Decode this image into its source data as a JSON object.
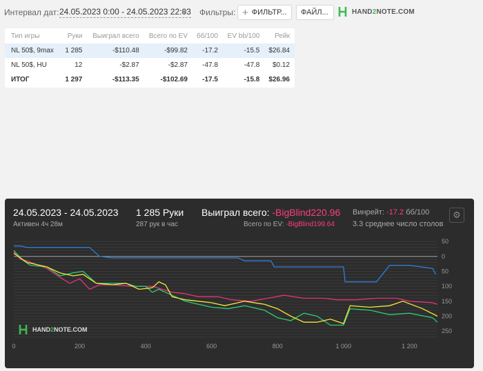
{
  "toolbar": {
    "interval_label": "Интервал дат:",
    "date_range": "24.05.2023 0:00 - 24.05.2023 22:03",
    "filters_label": "Фильтры:",
    "filter_button": "ФИЛЬТР...",
    "file_button": "ФАЙЛ...",
    "logo": {
      "pre": "HAND",
      "two": "2",
      "post": "NOTE.COM"
    }
  },
  "table": {
    "headers": [
      "Тип игры",
      "Руки",
      "Выиграл всего",
      "Всего по EV",
      "бб/100",
      "EV bb/100",
      "Рейк"
    ],
    "rows": [
      [
        "NL 50$, 9max",
        "1 285",
        "-$110.48",
        "-$99.82",
        "-17.2",
        "-15.5",
        "$26.84"
      ],
      [
        "NL 50$, HU",
        "12",
        "-$2.87",
        "-$2.87",
        "-47.8",
        "-47.8",
        "$0.12"
      ],
      [
        "ИТОГ",
        "1 297",
        "-$113.35",
        "-$102.69",
        "-17.5",
        "-15.8",
        "$26.96"
      ]
    ]
  },
  "graph": {
    "date_range": "24.05.2023 - 24.05.2023",
    "active": "Активен 4ч 28м",
    "hands": "1 285 Руки",
    "hands_per_hour": "287 рук в час",
    "won_label": "Выиграл всего:",
    "won_value": "-BigBlind220.96",
    "ev_label": "Всего по EV:",
    "ev_value": "-BigBlind199.64",
    "winrate_label": "Винрейт:",
    "winrate_value": "-17.2",
    "winrate_unit": "бб/100",
    "tables_avg": "3.3 среднее число столов",
    "watermark": {
      "pre": "HAND",
      "two": "2",
      "post": "NOTE.COM"
    }
  },
  "chart_data": {
    "type": "line",
    "x_ticks": [
      "0",
      "200",
      "400",
      "600",
      "800",
      "1 000",
      "1 200"
    ],
    "y_ticks": [
      "50",
      "0",
      "-50",
      "-100",
      "-150",
      "-200",
      "-250"
    ],
    "y_tick_labels": [
      "50",
      "0",
      "50",
      "100",
      "150",
      "200",
      "250"
    ],
    "xlim": [
      0,
      1285
    ],
    "ylim": [
      -275,
      55
    ],
    "colors": {
      "blue": "#2f7fd6",
      "green": "#2ecc71",
      "yellow": "#f2e93b",
      "pink": "#e8327c"
    },
    "series": [
      {
        "color": "blue",
        "points": [
          [
            0,
            35
          ],
          [
            20,
            35
          ],
          [
            40,
            30
          ],
          [
            150,
            30
          ],
          [
            230,
            30
          ],
          [
            240,
            20
          ],
          [
            260,
            0
          ],
          [
            300,
            -5
          ],
          [
            480,
            -5
          ],
          [
            600,
            -5
          ],
          [
            680,
            -5
          ],
          [
            700,
            -15
          ],
          [
            780,
            -15
          ],
          [
            790,
            -35
          ],
          [
            960,
            -35
          ],
          [
            1000,
            -35
          ],
          [
            1005,
            -85
          ],
          [
            1100,
            -85
          ],
          [
            1140,
            -30
          ],
          [
            1200,
            -30
          ],
          [
            1270,
            -40
          ],
          [
            1280,
            -60
          ]
        ]
      },
      {
        "color": "pink",
        "points": [
          [
            0,
            15
          ],
          [
            20,
            -10
          ],
          [
            40,
            -15
          ],
          [
            100,
            -40
          ],
          [
            140,
            -70
          ],
          [
            170,
            -90
          ],
          [
            200,
            -75
          ],
          [
            230,
            -110
          ],
          [
            260,
            -95
          ],
          [
            300,
            -95
          ],
          [
            360,
            -100
          ],
          [
            420,
            -100
          ],
          [
            480,
            -120
          ],
          [
            520,
            -125
          ],
          [
            560,
            -135
          ],
          [
            620,
            -135
          ],
          [
            660,
            -145
          ],
          [
            720,
            -150
          ],
          [
            770,
            -140
          ],
          [
            820,
            -130
          ],
          [
            880,
            -140
          ],
          [
            940,
            -140
          ],
          [
            980,
            -145
          ],
          [
            1040,
            -145
          ],
          [
            1100,
            -140
          ],
          [
            1160,
            -140
          ],
          [
            1200,
            -150
          ],
          [
            1270,
            -155
          ],
          [
            1285,
            -160
          ]
        ]
      },
      {
        "color": "green",
        "points": [
          [
            0,
            20
          ],
          [
            25,
            -10
          ],
          [
            50,
            -30
          ],
          [
            100,
            -35
          ],
          [
            140,
            -65
          ],
          [
            180,
            -55
          ],
          [
            210,
            -50
          ],
          [
            250,
            -90
          ],
          [
            300,
            -90
          ],
          [
            340,
            -90
          ],
          [
            370,
            -100
          ],
          [
            400,
            -100
          ],
          [
            420,
            -120
          ],
          [
            440,
            -110
          ],
          [
            480,
            -130
          ],
          [
            520,
            -150
          ],
          [
            560,
            -160
          ],
          [
            600,
            -170
          ],
          [
            650,
            -175
          ],
          [
            700,
            -165
          ],
          [
            760,
            -180
          ],
          [
            800,
            -205
          ],
          [
            840,
            -215
          ],
          [
            880,
            -190
          ],
          [
            920,
            -200
          ],
          [
            960,
            -230
          ],
          [
            1000,
            -230
          ],
          [
            1020,
            -175
          ],
          [
            1080,
            -180
          ],
          [
            1140,
            -195
          ],
          [
            1200,
            -190
          ],
          [
            1270,
            -205
          ],
          [
            1285,
            -220
          ]
        ]
      },
      {
        "color": "yellow",
        "points": [
          [
            0,
            10
          ],
          [
            20,
            -5
          ],
          [
            40,
            -20
          ],
          [
            100,
            -35
          ],
          [
            140,
            -55
          ],
          [
            180,
            -65
          ],
          [
            210,
            -60
          ],
          [
            250,
            -90
          ],
          [
            300,
            -95
          ],
          [
            340,
            -90
          ],
          [
            380,
            -110
          ],
          [
            420,
            -105
          ],
          [
            440,
            -85
          ],
          [
            460,
            -95
          ],
          [
            480,
            -135
          ],
          [
            520,
            -145
          ],
          [
            560,
            -150
          ],
          [
            600,
            -155
          ],
          [
            640,
            -165
          ],
          [
            700,
            -150
          ],
          [
            760,
            -160
          ],
          [
            800,
            -175
          ],
          [
            840,
            -200
          ],
          [
            880,
            -220
          ],
          [
            920,
            -220
          ],
          [
            960,
            -210
          ],
          [
            1000,
            -225
          ],
          [
            1020,
            -165
          ],
          [
            1080,
            -170
          ],
          [
            1140,
            -165
          ],
          [
            1180,
            -150
          ],
          [
            1240,
            -175
          ],
          [
            1285,
            -200
          ]
        ]
      }
    ]
  }
}
